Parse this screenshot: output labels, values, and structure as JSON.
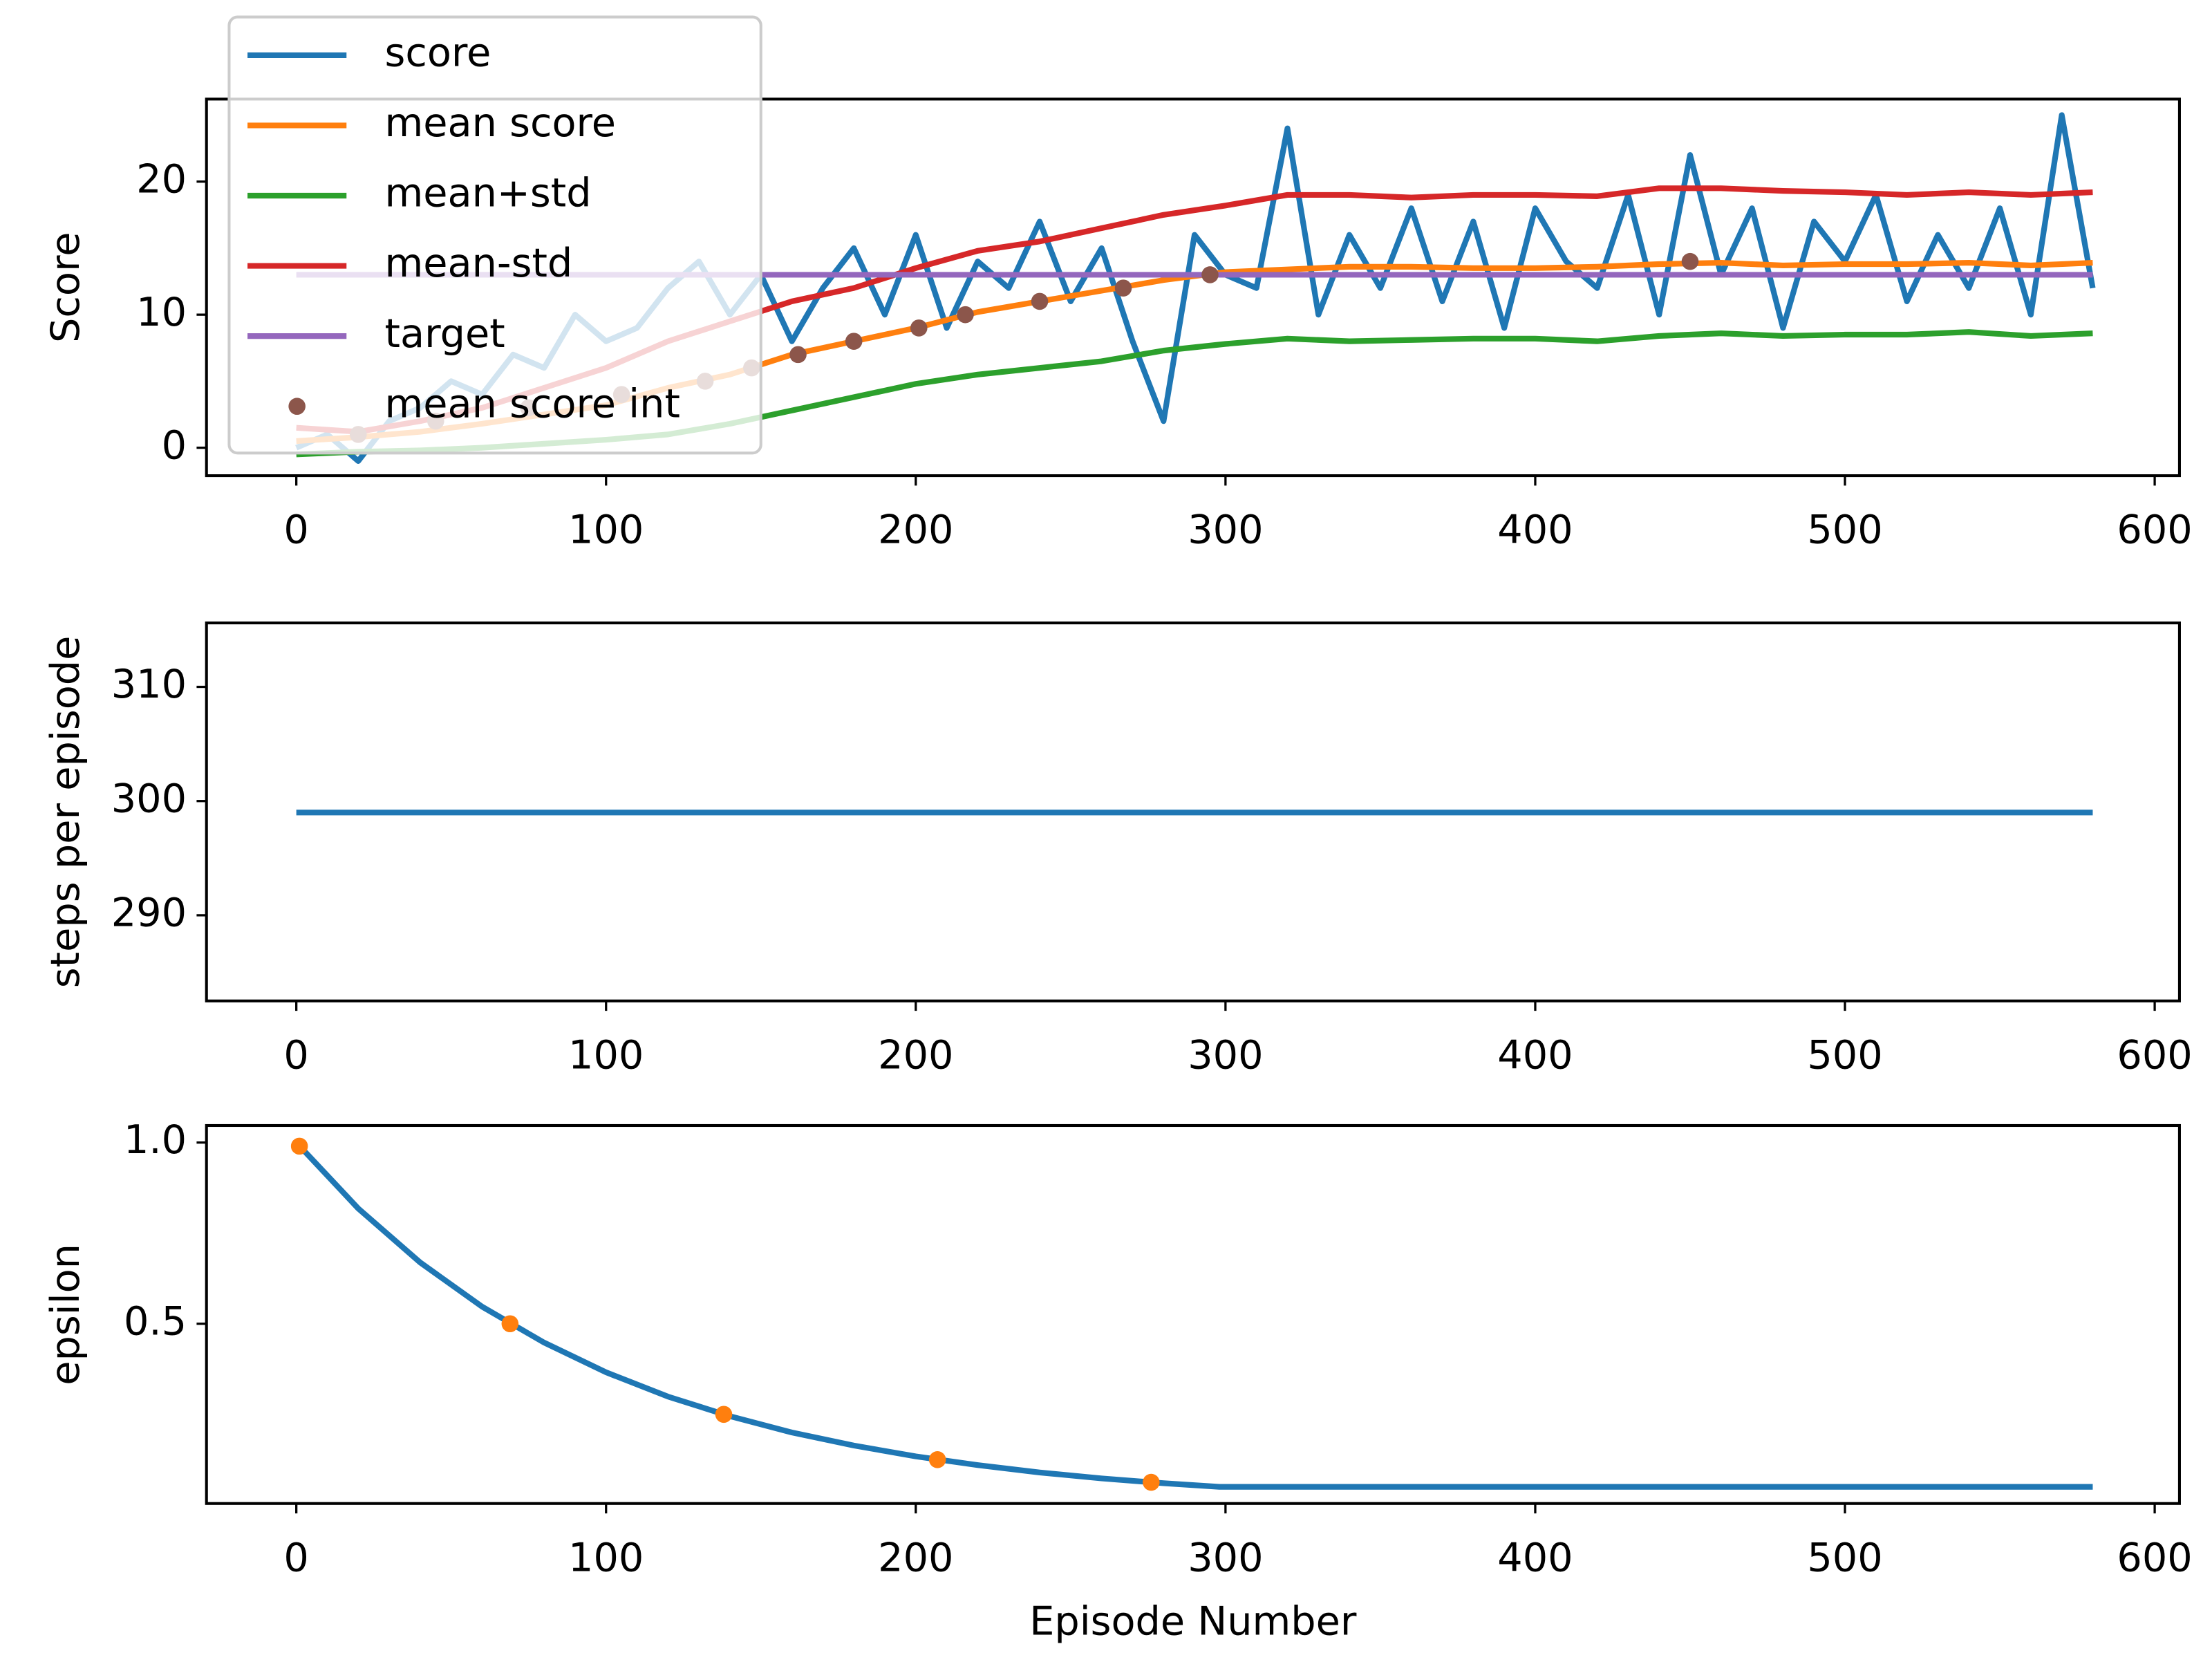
{
  "chart_data": [
    {
      "type": "line",
      "ylabel": "Score",
      "xlim": [
        -29,
        608
      ],
      "ylim": [
        -2.1,
        26.2
      ],
      "xticks": [
        0,
        100,
        200,
        300,
        400,
        500,
        600
      ],
      "yticks": [
        0,
        10,
        20
      ],
      "legend": "upper left",
      "series": [
        {
          "name": "score",
          "color": "#1f77b4",
          "x": [
            0,
            10,
            20,
            30,
            40,
            50,
            60,
            70,
            80,
            90,
            100,
            110,
            120,
            130,
            140,
            150,
            160,
            170,
            180,
            190,
            200,
            210,
            220,
            230,
            240,
            250,
            260,
            270,
            280,
            290,
            300,
            310,
            320,
            330,
            340,
            350,
            360,
            370,
            380,
            390,
            400,
            410,
            420,
            430,
            440,
            450,
            460,
            470,
            480,
            490,
            500,
            510,
            520,
            530,
            540,
            550,
            560,
            570,
            580
          ],
          "values": [
            0,
            1,
            -1,
            2,
            3,
            5,
            4,
            7,
            6,
            10,
            8,
            9,
            12,
            14,
            10,
            13,
            8,
            12,
            15,
            10,
            16,
            9,
            14,
            12,
            17,
            11,
            15,
            8,
            2,
            16,
            13,
            12,
            24,
            10,
            16,
            12,
            18,
            11,
            17,
            9,
            18,
            14,
            12,
            19,
            10,
            22,
            13,
            18,
            9,
            17,
            14,
            19,
            11,
            16,
            12,
            18,
            10,
            25,
            12
          ]
        },
        {
          "name": "mean score",
          "color": "#ff7f0e",
          "x": [
            0,
            20,
            40,
            60,
            80,
            100,
            120,
            140,
            160,
            180,
            200,
            220,
            240,
            260,
            280,
            300,
            320,
            340,
            360,
            380,
            400,
            420,
            440,
            460,
            480,
            500,
            520,
            540,
            560,
            580
          ],
          "values": [
            0.5,
            0.8,
            1.2,
            1.8,
            2.5,
            3.2,
            4.5,
            5.5,
            7,
            8,
            9,
            10.2,
            11,
            11.8,
            12.6,
            13.2,
            13.4,
            13.6,
            13.6,
            13.5,
            13.5,
            13.6,
            13.8,
            13.9,
            13.7,
            13.8,
            13.8,
            13.9,
            13.7,
            13.9
          ]
        },
        {
          "name": "mean+std",
          "color": "#2ca02c",
          "x": [
            0,
            20,
            40,
            60,
            80,
            100,
            120,
            140,
            160,
            180,
            200,
            220,
            240,
            260,
            280,
            300,
            320,
            340,
            360,
            380,
            400,
            420,
            440,
            460,
            480,
            500,
            520,
            540,
            560,
            580
          ],
          "values": [
            -0.5,
            -0.3,
            -0.2,
            0,
            0.3,
            0.6,
            1,
            1.8,
            2.8,
            3.8,
            4.8,
            5.5,
            6,
            6.5,
            7.3,
            7.8,
            8.2,
            8,
            8.1,
            8.2,
            8.2,
            8,
            8.4,
            8.6,
            8.4,
            8.5,
            8.5,
            8.7,
            8.4,
            8.6
          ]
        },
        {
          "name": "mean-std",
          "color": "#d62728",
          "x": [
            0,
            20,
            40,
            60,
            80,
            100,
            120,
            140,
            160,
            180,
            200,
            220,
            240,
            260,
            280,
            300,
            320,
            340,
            360,
            380,
            400,
            420,
            440,
            460,
            480,
            500,
            520,
            540,
            560,
            580
          ],
          "values": [
            1.5,
            1.2,
            2,
            3,
            4.5,
            6,
            8,
            9.5,
            11,
            12,
            13.5,
            14.8,
            15.5,
            16.5,
            17.5,
            18.2,
            19,
            19,
            18.8,
            19,
            19,
            18.9,
            19.5,
            19.5,
            19.3,
            19.2,
            19,
            19.2,
            19,
            19.2
          ]
        },
        {
          "name": "target",
          "color": "#9467bd",
          "x": [
            0,
            580
          ],
          "values": [
            13,
            13
          ]
        },
        {
          "name": "mean score int",
          "color": "#8c564b",
          "type": "scatter",
          "x": [
            20,
            45,
            75,
            105,
            132,
            147,
            162,
            180,
            201,
            216,
            240,
            267,
            295,
            450
          ],
          "values": [
            1,
            2,
            3,
            4,
            5,
            6,
            7,
            8,
            9,
            10,
            11,
            12,
            13,
            14
          ]
        }
      ]
    },
    {
      "type": "line",
      "ylabel": "steps per episode",
      "xlim": [
        -29,
        608
      ],
      "ylim": [
        282.5,
        315.6
      ],
      "xticks": [
        0,
        100,
        200,
        300,
        400,
        500,
        600
      ],
      "yticks": [
        290,
        300,
        310
      ],
      "series": [
        {
          "name": "steps",
          "color": "#1f77b4",
          "x": [
            0,
            580
          ],
          "values": [
            299,
            299
          ]
        }
      ]
    },
    {
      "type": "line",
      "ylabel": "epsilon",
      "xlabel": "Episode Number",
      "xlim": [
        -29,
        608
      ],
      "ylim": [
        0.004,
        1.047
      ],
      "xticks": [
        0,
        100,
        200,
        300,
        400,
        500,
        600
      ],
      "yticks": [
        {
          "value": 1,
          "label": "1.0"
        },
        0.5
      ],
      "series": [
        {
          "color": "#1f77b4",
          "x": [
            0,
            20,
            40,
            60,
            80,
            100,
            120,
            140,
            160,
            180,
            200,
            220,
            240,
            260,
            280,
            298,
            580
          ],
          "values": [
            1,
            0.818,
            0.669,
            0.547,
            0.448,
            0.366,
            0.299,
            0.245,
            0.2,
            0.164,
            0.134,
            0.11,
            0.0896,
            0.0733,
            0.06,
            0.05,
            0.05
          ]
        },
        {
          "color": "#ff7f0e",
          "type": "scatter",
          "x": [
            1,
            69,
            138,
            207,
            276
          ],
          "values": [
            0.99,
            0.5,
            0.25,
            0.125,
            0.0625
          ]
        }
      ]
    }
  ]
}
